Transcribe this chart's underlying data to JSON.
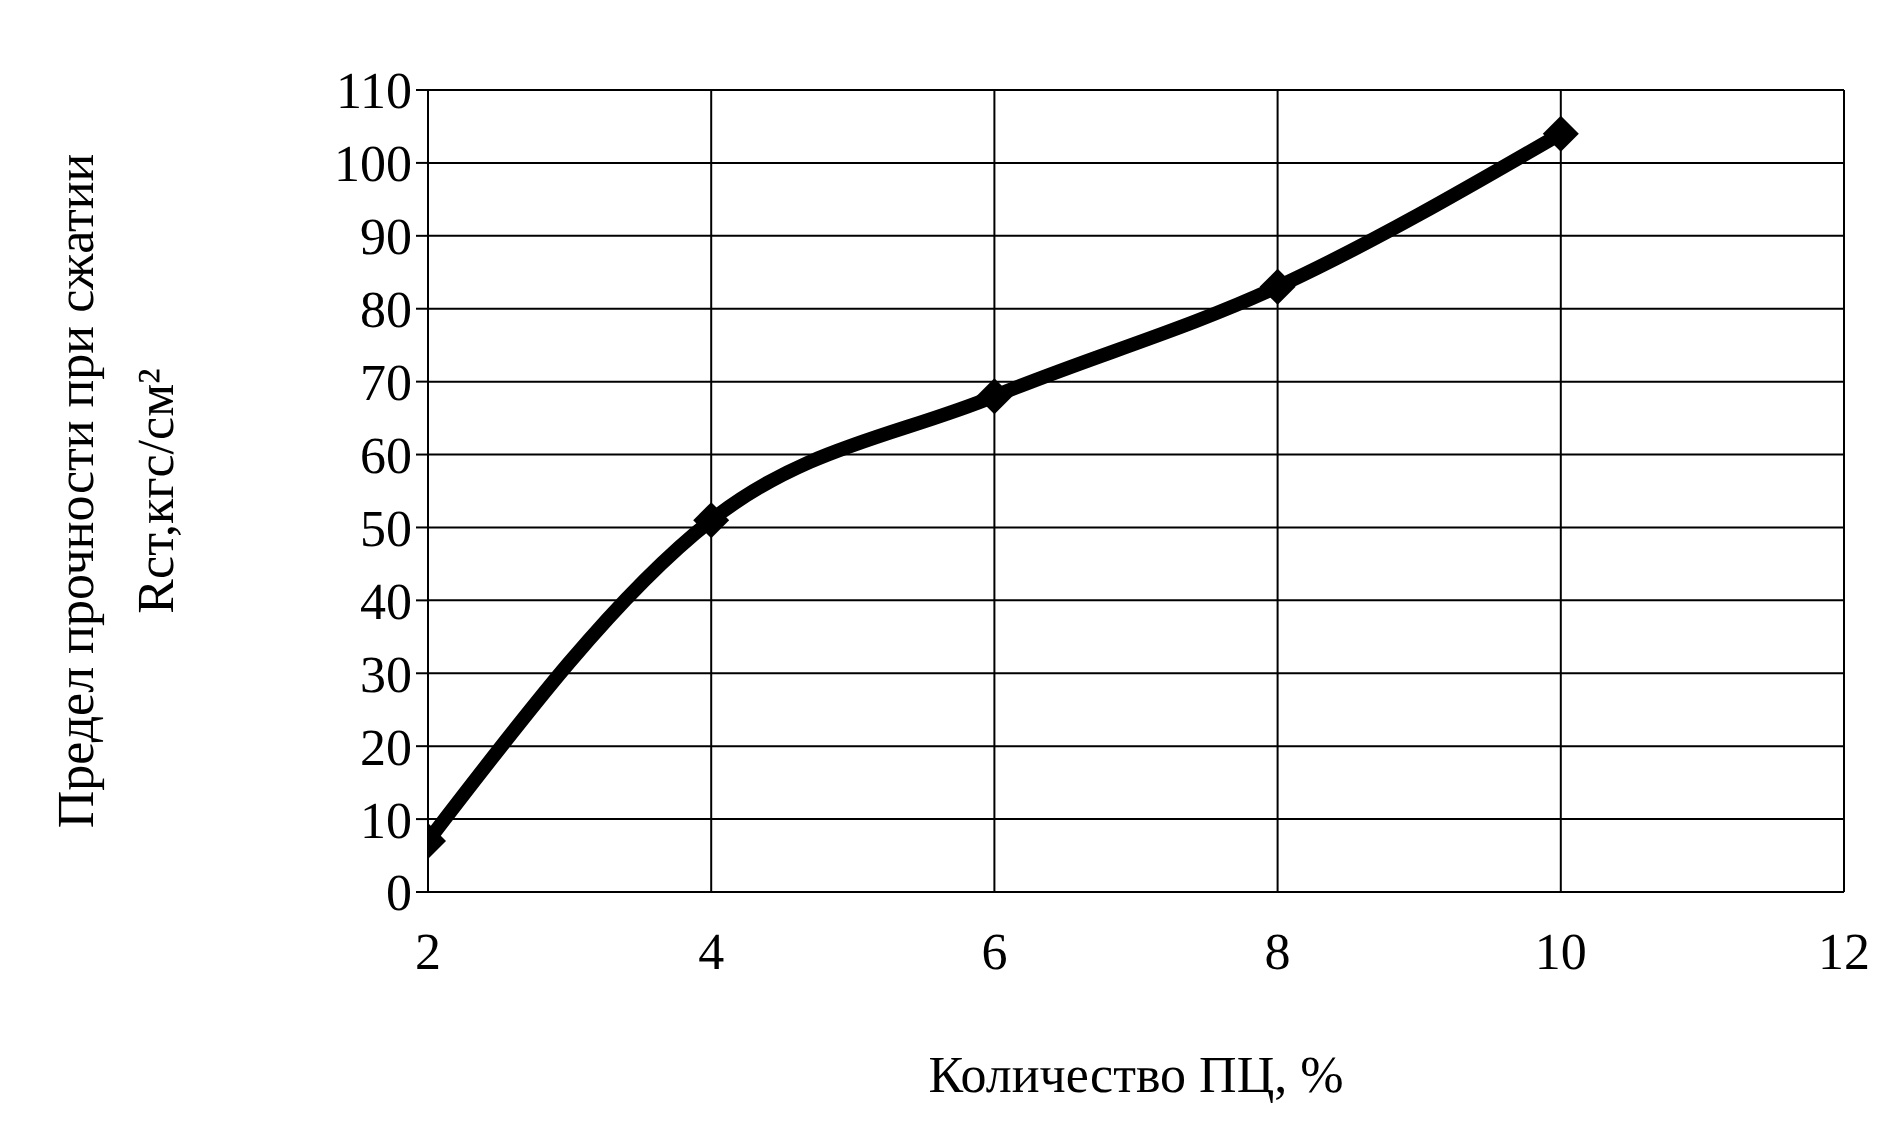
{
  "chart_data": {
    "type": "line",
    "xlabel": "Количество ПЦ, %",
    "ylabel": "Предел прочности при сжатии\nRст,кгс/см²",
    "x": [
      2,
      4,
      6,
      8,
      10
    ],
    "series": [
      {
        "color": "#000000",
        "values": [
          7,
          51,
          68,
          83,
          104
        ]
      }
    ],
    "xlim": [
      2,
      12
    ],
    "xticks": [
      2,
      4,
      6,
      8,
      10,
      12
    ],
    "ylim": [
      0,
      110
    ],
    "yticks": [
      0,
      10,
      20,
      30,
      40,
      50,
      60,
      70,
      80,
      90,
      100,
      110
    ],
    "grid": true,
    "marker": "diamond",
    "line_style": "solid"
  }
}
